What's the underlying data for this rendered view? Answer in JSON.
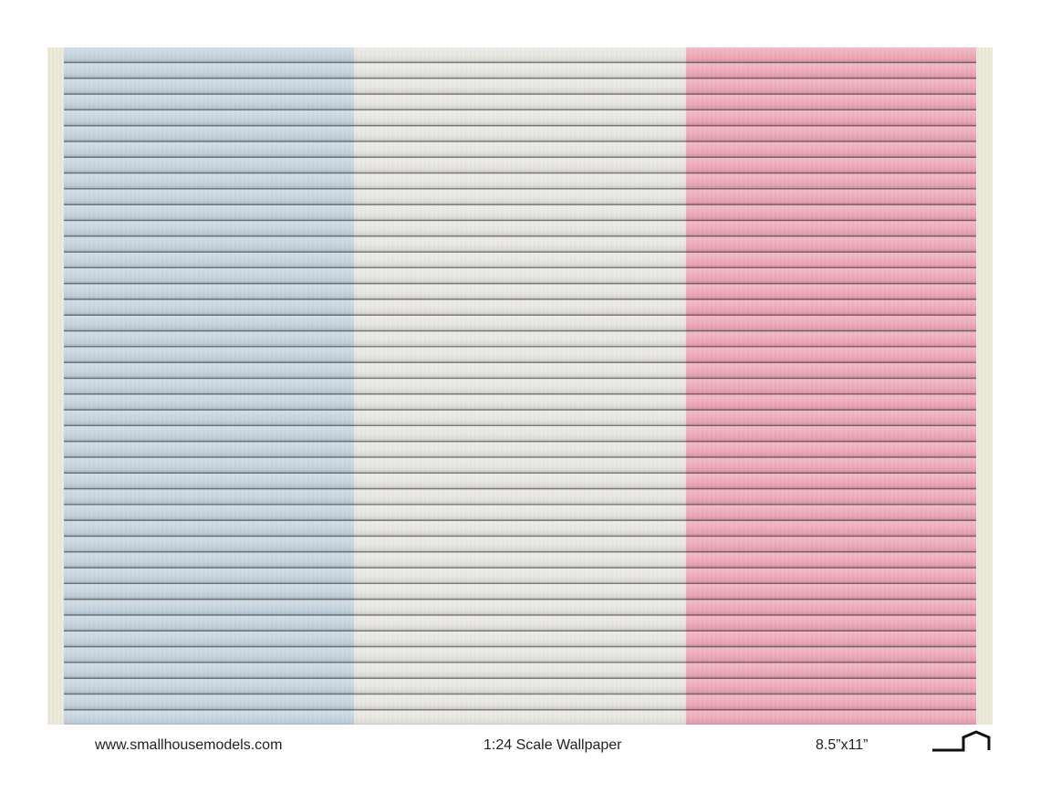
{
  "footer": {
    "website": "www.smallhousemodels.com",
    "title": "1:24 Scale Wallpaper",
    "paper_size": "8.5”x11”"
  },
  "logo": {
    "icon": "house-outline-icon"
  },
  "swatches": [
    {
      "name": "blue siding",
      "color": "#c6d5e2"
    },
    {
      "name": "white siding",
      "color": "#e9e8e3"
    },
    {
      "name": "pink siding",
      "color": "#f0a8b8"
    }
  ],
  "colors": {
    "border": "#ebe8d8",
    "board_line": "#3a3a3a"
  }
}
